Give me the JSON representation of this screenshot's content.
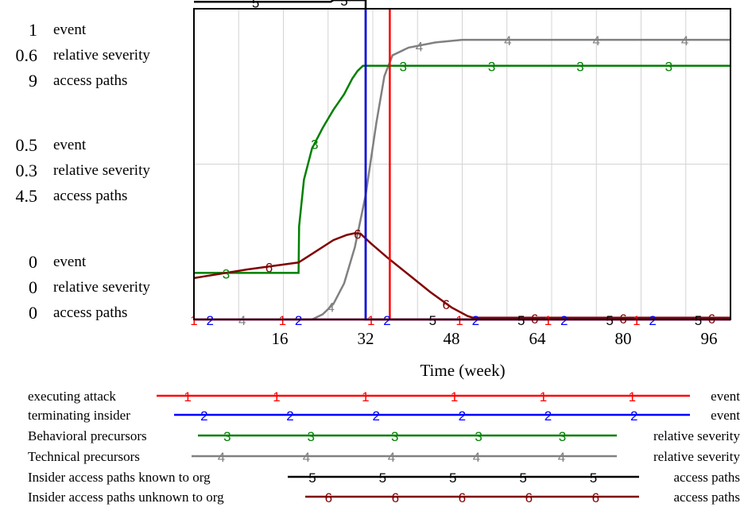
{
  "chart_data": {
    "type": "line",
    "xlabel": "Time (week)",
    "xlim": [
      0,
      100
    ],
    "x_ticks": [
      "16",
      "32",
      "48",
      "64",
      "80",
      "96"
    ],
    "x_tick_values": [
      16,
      32,
      48,
      64,
      80,
      96
    ],
    "grid": true,
    "y_axis_groups": [
      {
        "values": [
          "1",
          "0.6",
          "9"
        ],
        "units": [
          "event",
          "relative severity",
          "access paths"
        ]
      },
      {
        "values": [
          "0.5",
          "0.3",
          "4.5"
        ],
        "units": [
          "event",
          "relative severity",
          "access paths"
        ]
      },
      {
        "values": [
          "0",
          "0",
          "0"
        ],
        "units": [
          "event",
          "relative severity",
          "access paths"
        ]
      }
    ],
    "series": [
      {
        "name": "executing attack",
        "marker": "1",
        "unit": "event",
        "ymax": 1,
        "color": "#ff0000",
        "points": [
          [
            0,
            0
          ],
          [
            36.5,
            0
          ],
          [
            36.5,
            1
          ],
          [
            36.5,
            0
          ],
          [
            100,
            0
          ]
        ],
        "markers_x": [
          0,
          16.5,
          33,
          49.5,
          66,
          82.5
        ]
      },
      {
        "name": "terminating insider",
        "marker": "2",
        "unit": "event",
        "ymax": 1,
        "color": "#0000ff",
        "points": [
          [
            0,
            0
          ],
          [
            32,
            0
          ],
          [
            32,
            1
          ],
          [
            32,
            0
          ],
          [
            100,
            0
          ]
        ],
        "markers_x": [
          3,
          19.5,
          36,
          52.5,
          69,
          85.5
        ]
      },
      {
        "name": "Behavioral precursors",
        "marker": "3",
        "unit": "relative severity",
        "ymax": 0.6,
        "color": "#008000",
        "points": [
          [
            0,
            0.09
          ],
          [
            19.5,
            0.09
          ],
          [
            19.6,
            0.18
          ],
          [
            20.5,
            0.27
          ],
          [
            22,
            0.33
          ],
          [
            24,
            0.37
          ],
          [
            26,
            0.405
          ],
          [
            28,
            0.435
          ],
          [
            29.5,
            0.465
          ],
          [
            30.5,
            0.48
          ],
          [
            31.5,
            0.49
          ],
          [
            32,
            0.49
          ],
          [
            100,
            0.49
          ]
        ],
        "markers_x": [
          6,
          22.5,
          39,
          55.5,
          72,
          88.5
        ]
      },
      {
        "name": "Technical precursors",
        "marker": "4",
        "unit": "relative severity",
        "ymax": 0.6,
        "color": "#808080",
        "points": [
          [
            0,
            0
          ],
          [
            22,
            0
          ],
          [
            24,
            0.01
          ],
          [
            26,
            0.03
          ],
          [
            28,
            0.07
          ],
          [
            30,
            0.14
          ],
          [
            32,
            0.24
          ],
          [
            34,
            0.38
          ],
          [
            35.5,
            0.47
          ],
          [
            37,
            0.51
          ],
          [
            40,
            0.525
          ],
          [
            45,
            0.535
          ],
          [
            50,
            0.54
          ],
          [
            100,
            0.54
          ]
        ],
        "markers_x": [
          9,
          25.5,
          42,
          58.5,
          75,
          91.5
        ]
      },
      {
        "name": "Insider access paths known to org",
        "marker": "5",
        "unit": "access paths",
        "ymax": 9,
        "color": "#000000",
        "points": [
          [
            0,
            9.2
          ],
          [
            25.5,
            9.2
          ],
          [
            26,
            9.25
          ],
          [
            32,
            9.25
          ],
          [
            32,
            0
          ],
          [
            100,
            0
          ]
        ],
        "markers_x": [
          11.5,
          28,
          44.5,
          61,
          77.5,
          94
        ]
      },
      {
        "name": "Insider access paths unknown to org",
        "marker": "6",
        "unit": "access paths",
        "ymax": 9,
        "color": "#800000",
        "points": [
          [
            0,
            1.2
          ],
          [
            10,
            1.45
          ],
          [
            19.5,
            1.65
          ],
          [
            22.5,
            1.95
          ],
          [
            26,
            2.3
          ],
          [
            28.5,
            2.45
          ],
          [
            30,
            2.5
          ],
          [
            31,
            2.49
          ],
          [
            33,
            2.2
          ],
          [
            36,
            1.8
          ],
          [
            40,
            1.3
          ],
          [
            44,
            0.8
          ],
          [
            48,
            0.35
          ],
          [
            51,
            0.1
          ],
          [
            52,
            0.05
          ],
          [
            100,
            0.05
          ]
        ],
        "markers_x": [
          14,
          30.5,
          47,
          63.5,
          80,
          96.5
        ]
      }
    ]
  }
}
